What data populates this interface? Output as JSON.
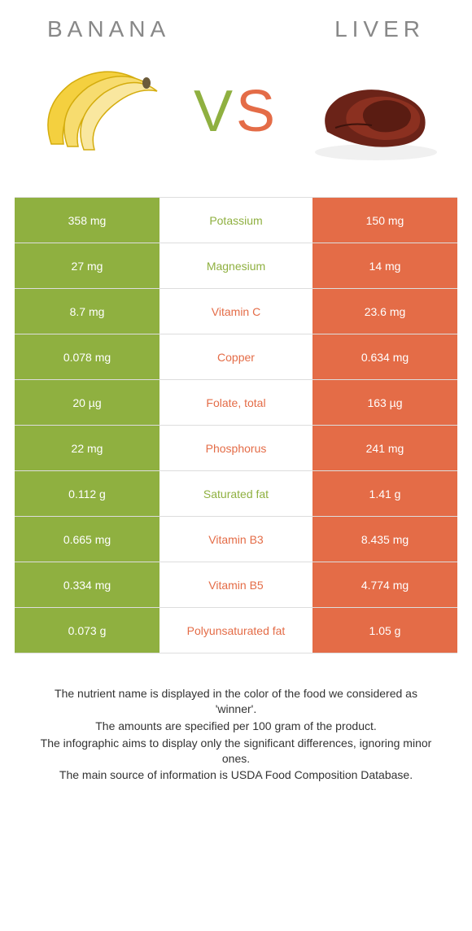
{
  "header": {
    "left_title": "BANANA",
    "right_title": "LIVER"
  },
  "colors": {
    "left": "#8fb040",
    "right": "#e46c47",
    "border": "#dddddd",
    "title_text": "#888888",
    "body_text": "#ffffff"
  },
  "vs_text": {
    "v": "V",
    "s": "S"
  },
  "rows": [
    {
      "left": "358 mg",
      "label": "Potassium",
      "right": "150 mg",
      "winner": "left"
    },
    {
      "left": "27 mg",
      "label": "Magnesium",
      "right": "14 mg",
      "winner": "left"
    },
    {
      "left": "8.7 mg",
      "label": "Vitamin C",
      "right": "23.6 mg",
      "winner": "right"
    },
    {
      "left": "0.078 mg",
      "label": "Copper",
      "right": "0.634 mg",
      "winner": "right"
    },
    {
      "left": "20 µg",
      "label": "Folate, total",
      "right": "163 µg",
      "winner": "right"
    },
    {
      "left": "22 mg",
      "label": "Phosphorus",
      "right": "241 mg",
      "winner": "right"
    },
    {
      "left": "0.112 g",
      "label": "Saturated fat",
      "right": "1.41 g",
      "winner": "left"
    },
    {
      "left": "0.665 mg",
      "label": "Vitamin B3",
      "right": "8.435 mg",
      "winner": "right"
    },
    {
      "left": "0.334 mg",
      "label": "Vitamin B5",
      "right": "4.774 mg",
      "winner": "right"
    },
    {
      "left": "0.073 g",
      "label": "Polyunsaturated fat",
      "right": "1.05 g",
      "winner": "right"
    }
  ],
  "footer": {
    "line1": "The nutrient name is displayed in the color of the food we considered as 'winner'.",
    "line2": "The amounts are specified per 100 gram of the product.",
    "line3": "The infographic aims to display only the significant differences, ignoring minor ones.",
    "line4": "The main source of information is USDA Food Composition Database."
  }
}
